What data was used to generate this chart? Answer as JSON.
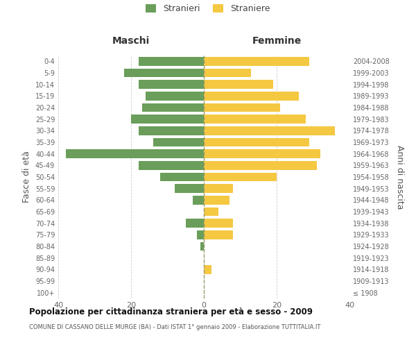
{
  "age_groups": [
    "100+",
    "95-99",
    "90-94",
    "85-89",
    "80-84",
    "75-79",
    "70-74",
    "65-69",
    "60-64",
    "55-59",
    "50-54",
    "45-49",
    "40-44",
    "35-39",
    "30-34",
    "25-29",
    "20-24",
    "15-19",
    "10-14",
    "5-9",
    "0-4"
  ],
  "birth_years": [
    "≤ 1908",
    "1909-1913",
    "1914-1918",
    "1919-1923",
    "1924-1928",
    "1929-1933",
    "1934-1938",
    "1939-1943",
    "1944-1948",
    "1949-1953",
    "1954-1958",
    "1959-1963",
    "1964-1968",
    "1969-1973",
    "1974-1978",
    "1979-1983",
    "1984-1988",
    "1989-1993",
    "1994-1998",
    "1999-2003",
    "2004-2008"
  ],
  "males": [
    0,
    0,
    0,
    0,
    1,
    2,
    5,
    0,
    3,
    8,
    12,
    18,
    38,
    14,
    18,
    20,
    17,
    16,
    18,
    22,
    18
  ],
  "females": [
    0,
    0,
    2,
    0,
    0,
    8,
    8,
    4,
    7,
    8,
    20,
    31,
    32,
    29,
    36,
    28,
    21,
    26,
    19,
    13,
    29
  ],
  "male_color": "#6a9e5a",
  "female_color": "#f5c842",
  "title": "Popolazione per cittadinanza straniera per età e sesso - 2009",
  "subtitle": "COMUNE DI CASSANO DELLE MURGE (BA) - Dati ISTAT 1° gennaio 2009 - Elaborazione TUTTITALIA.IT",
  "ylabel_left": "Fasce di età",
  "ylabel_right": "Anni di nascita",
  "xlabel_maschi": "Maschi",
  "xlabel_femmine": "Femmine",
  "legend_male": "Stranieri",
  "legend_female": "Straniere",
  "xlim": 40,
  "bg_color": "#ffffff",
  "grid_color": "#cccccc",
  "center_line_color": "#999966"
}
